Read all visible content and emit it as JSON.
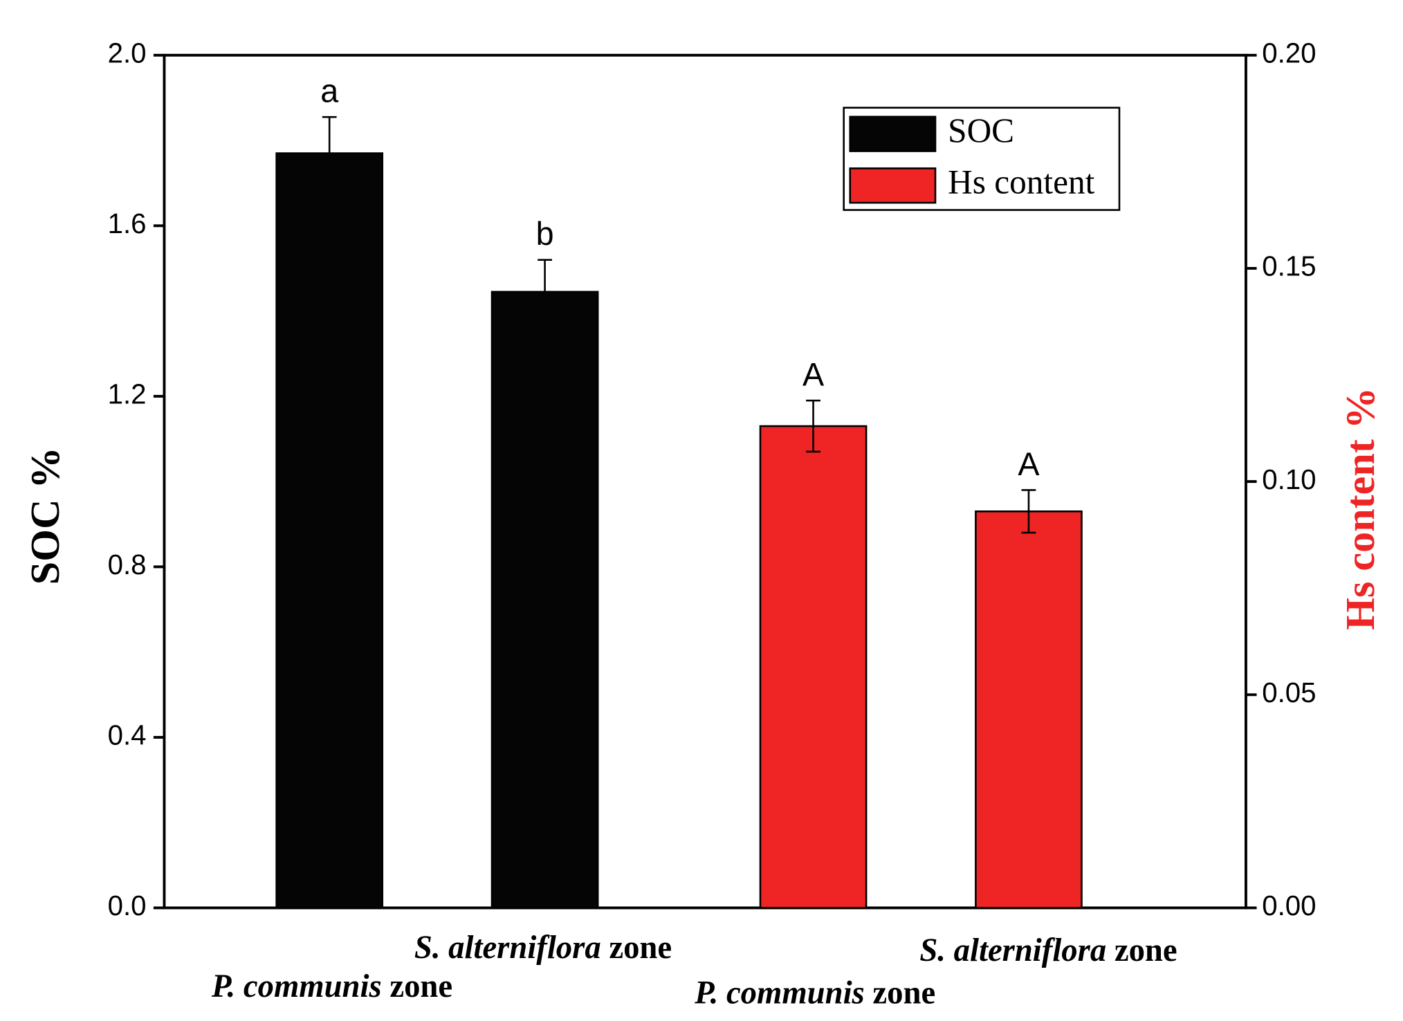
{
  "chart_data": {
    "type": "bar",
    "categories": [
      "P. communis zone",
      "S. alterniflora zone",
      "P. communis zone",
      "S. alterniflora zone"
    ],
    "series": [
      {
        "name": "SOC",
        "color": "#050505",
        "values": [
          1.77,
          1.445,
          null,
          null
        ],
        "errors": [
          0.085,
          0.075,
          null,
          null
        ],
        "labels": [
          "a",
          "b",
          null,
          null
        ]
      },
      {
        "name": "Hs content",
        "color": "#ee2524",
        "axis": "y2",
        "values": [
          null,
          null,
          0.113,
          0.093
        ],
        "errors": [
          null,
          null,
          0.006,
          0.005
        ],
        "labels": [
          null,
          null,
          "A",
          "A"
        ]
      }
    ],
    "ylabel": "SOC %",
    "y2label": "Hs content %",
    "y2label_color": "#ee2524",
    "ylim": [
      0,
      2.0
    ],
    "yticks": [
      {
        "value": 0,
        "label": "0.0"
      },
      0.4,
      0.8,
      1.2,
      1.6,
      {
        "value": 2.0,
        "label": "2.0"
      }
    ],
    "y2lim": [
      0,
      0.2
    ],
    "y2ticks": [
      {
        "value": 0,
        "label": "0.00"
      },
      0.05,
      {
        "value": 0.1,
        "label": "0.10"
      },
      0.15,
      {
        "value": 0.2,
        "label": "0.20"
      }
    ],
    "legend": "upper right"
  }
}
